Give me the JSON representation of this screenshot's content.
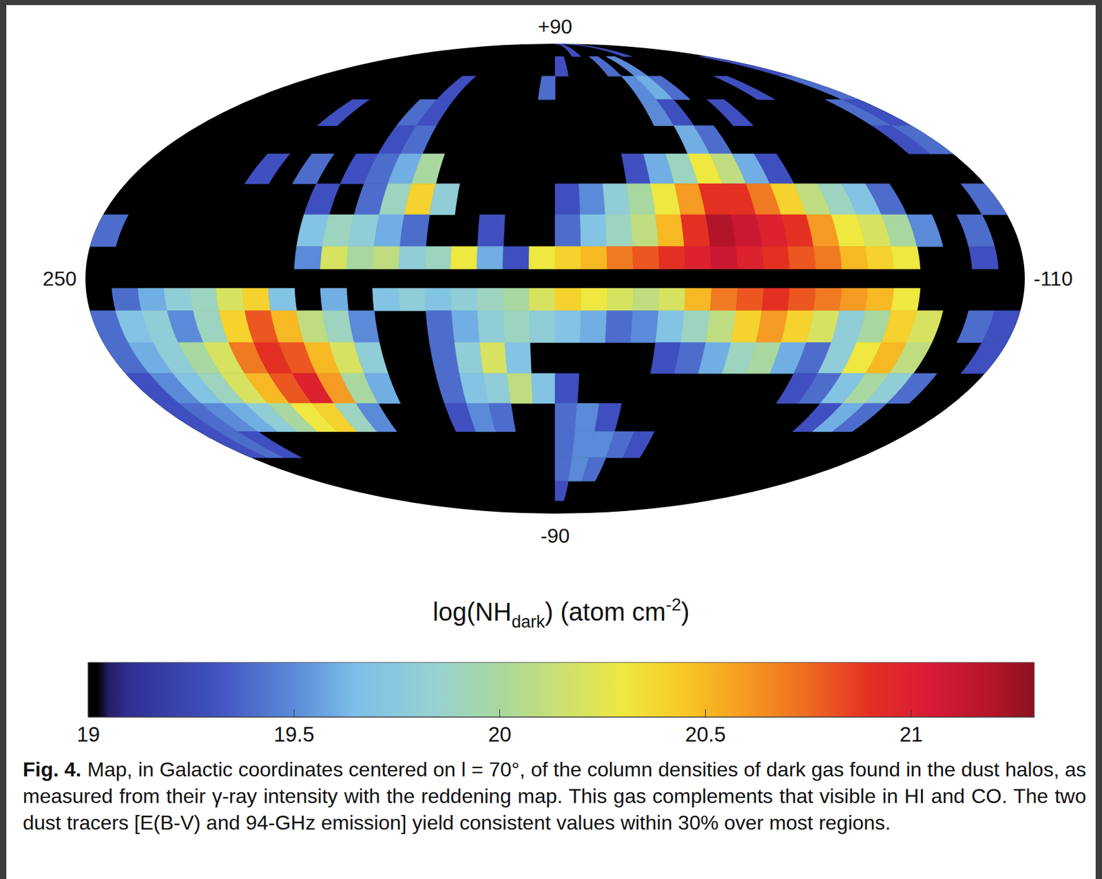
{
  "chart_data": {
    "type": "map",
    "xlim": [
      250,
      -110
    ],
    "ylim": [
      90,
      -90
    ],
    "xticks": [
      250,
      -110
    ],
    "yticks": [
      {
        "value": 90,
        "label": "+90"
      },
      -90
    ],
    "lon_edges": [
      250,
      240,
      230,
      220,
      210,
      200,
      190,
      180,
      170,
      160,
      150,
      140,
      130,
      120,
      110,
      100,
      90,
      80,
      70,
      60,
      50,
      40,
      30,
      20,
      10,
      0,
      -10,
      -20,
      -30,
      -40,
      -50,
      -60,
      -70,
      -80,
      -90,
      -100,
      -110
    ],
    "lat_edges": [
      90,
      80,
      70,
      60,
      50,
      40,
      30,
      20,
      10,
      3,
      -3,
      -10,
      -20,
      -30,
      -40,
      -50,
      -60,
      -70,
      -80,
      -90
    ],
    "cells": [
      [
        null,
        null,
        null,
        null,
        null,
        null,
        null,
        null,
        null,
        null,
        null,
        null,
        null,
        null,
        null,
        null,
        null,
        null,
        null,
        null,
        19.3,
        null,
        null,
        null,
        null,
        null,
        19.3,
        null,
        null,
        null,
        null,
        null,
        null,
        null,
        null,
        null
      ],
      [
        null,
        null,
        null,
        null,
        null,
        null,
        null,
        null,
        null,
        null,
        null,
        null,
        null,
        null,
        null,
        null,
        null,
        null,
        19.3,
        null,
        null,
        null,
        19.4,
        null,
        19.5,
        null,
        null,
        null,
        null,
        null,
        null,
        null,
        null,
        null,
        null,
        19.3
      ],
      [
        null,
        null,
        null,
        null,
        null,
        null,
        null,
        null,
        null,
        null,
        null,
        19.3,
        null,
        null,
        null,
        null,
        null,
        19.4,
        null,
        null,
        null,
        null,
        null,
        19.5,
        19.6,
        19.4,
        null,
        null,
        null,
        null,
        19.3,
        null,
        null,
        null,
        null,
        19.4
      ],
      [
        null,
        null,
        null,
        null,
        null,
        null,
        19.3,
        null,
        null,
        null,
        19.4,
        19.3,
        null,
        null,
        null,
        null,
        null,
        null,
        null,
        null,
        null,
        null,
        null,
        19.5,
        19.3,
        null,
        null,
        19.3,
        null,
        null,
        null,
        null,
        null,
        null,
        19.4,
        19.3
      ],
      [
        null,
        null,
        null,
        null,
        null,
        null,
        null,
        null,
        null,
        null,
        19.3,
        19.4,
        null,
        null,
        null,
        null,
        null,
        null,
        null,
        null,
        null,
        null,
        null,
        null,
        19.6,
        19.4,
        null,
        null,
        null,
        null,
        null,
        null,
        null,
        null,
        19.3,
        19.4
      ],
      [
        null,
        null,
        null,
        null,
        null,
        19.3,
        null,
        19.4,
        null,
        19.3,
        19.4,
        19.6,
        20.0,
        null,
        null,
        null,
        null,
        null,
        null,
        null,
        null,
        19.3,
        19.6,
        19.9,
        20.3,
        20.1,
        19.6,
        19.3,
        null,
        null,
        null,
        null,
        null,
        null,
        null,
        null
      ],
      [
        null,
        null,
        null,
        null,
        null,
        null,
        null,
        null,
        19.3,
        null,
        19.4,
        19.9,
        20.4,
        19.8,
        null,
        null,
        null,
        null,
        19.3,
        19.5,
        19.8,
        20.0,
        20.3,
        20.6,
        20.9,
        20.9,
        20.7,
        20.4,
        20.1,
        19.9,
        19.7,
        19.4,
        null,
        null,
        null,
        19.4
      ],
      [
        19.4,
        null,
        null,
        null,
        null,
        null,
        null,
        null,
        19.7,
        19.9,
        19.8,
        19.6,
        19.4,
        null,
        null,
        19.3,
        null,
        null,
        19.4,
        19.7,
        19.9,
        20.1,
        20.5,
        20.9,
        21.2,
        21.1,
        21.0,
        20.9,
        20.6,
        20.3,
        20.2,
        20.0,
        19.5,
        null,
        19.4,
        null
      ],
      [
        null,
        null,
        null,
        null,
        null,
        null,
        null,
        null,
        19.5,
        20.2,
        20.0,
        20.1,
        19.8,
        19.9,
        20.3,
        19.6,
        19.3,
        20.3,
        20.4,
        20.5,
        20.7,
        20.8,
        20.9,
        21.0,
        21.1,
        21.0,
        20.9,
        20.8,
        20.7,
        20.5,
        20.4,
        20.3,
        null,
        null,
        19.3,
        null
      ],
      [
        null,
        null,
        null,
        null,
        null,
        null,
        null,
        null,
        null,
        null,
        null,
        null,
        null,
        null,
        null,
        null,
        null,
        null,
        null,
        null,
        null,
        null,
        null,
        null,
        null,
        null,
        null,
        null,
        null,
        null,
        null,
        null,
        null,
        null,
        null,
        null
      ],
      [
        null,
        19.4,
        19.6,
        19.8,
        19.9,
        20.2,
        20.4,
        19.7,
        null,
        19.6,
        null,
        19.7,
        19.8,
        19.7,
        19.8,
        19.9,
        20.0,
        20.2,
        20.4,
        20.3,
        20.2,
        20.1,
        20.2,
        20.5,
        20.7,
        20.8,
        20.9,
        20.8,
        20.7,
        20.6,
        20.5,
        20.3,
        null,
        null,
        null,
        null
      ],
      [
        19.4,
        19.7,
        19.8,
        19.5,
        19.9,
        20.4,
        20.8,
        20.5,
        20.1,
        19.9,
        19.5,
        null,
        null,
        19.4,
        19.6,
        19.8,
        19.9,
        19.8,
        19.7,
        19.6,
        19.4,
        19.5,
        19.7,
        19.9,
        20.1,
        20.4,
        20.6,
        20.4,
        20.2,
        19.8,
        20.0,
        20.4,
        20.2,
        null,
        19.4,
        19.3
      ],
      [
        19.4,
        19.6,
        19.8,
        20.0,
        20.2,
        20.7,
        20.9,
        20.8,
        20.5,
        20.2,
        19.8,
        null,
        null,
        19.4,
        19.8,
        20.2,
        19.7,
        null,
        null,
        null,
        null,
        null,
        19.3,
        19.4,
        19.6,
        19.9,
        20.0,
        19.6,
        19.4,
        19.8,
        20.3,
        20.5,
        20.1,
        null,
        null,
        19.3
      ],
      [
        19.3,
        19.5,
        19.7,
        19.9,
        20.2,
        20.5,
        20.8,
        21.0,
        20.6,
        20.0,
        19.6,
        null,
        null,
        19.4,
        19.7,
        19.8,
        20.1,
        19.7,
        19.3,
        null,
        null,
        null,
        null,
        null,
        null,
        null,
        null,
        null,
        19.3,
        19.4,
        19.7,
        20.0,
        19.8,
        19.4,
        null,
        null
      ],
      [
        19.3,
        19.4,
        19.5,
        19.6,
        19.8,
        20.0,
        20.3,
        20.4,
        19.9,
        19.5,
        null,
        null,
        null,
        19.3,
        19.5,
        19.4,
        null,
        null,
        19.4,
        19.5,
        19.3,
        null,
        null,
        null,
        null,
        null,
        null,
        null,
        null,
        null,
        19.3,
        19.6,
        19.4,
        null,
        null,
        null
      ],
      [
        19.3,
        19.4,
        19.3,
        null,
        null,
        null,
        null,
        null,
        null,
        null,
        null,
        null,
        null,
        null,
        null,
        null,
        null,
        null,
        19.4,
        19.5,
        19.5,
        19.4,
        19.3,
        null,
        null,
        null,
        null,
        null,
        null,
        null,
        null,
        null,
        null,
        null,
        null,
        null
      ],
      [
        null,
        null,
        null,
        null,
        null,
        null,
        null,
        null,
        null,
        null,
        null,
        null,
        null,
        null,
        null,
        null,
        null,
        null,
        19.4,
        19.5,
        19.4,
        null,
        null,
        null,
        null,
        null,
        null,
        null,
        null,
        null,
        null,
        null,
        null,
        null,
        null,
        null
      ],
      [
        null,
        null,
        null,
        null,
        null,
        null,
        null,
        null,
        null,
        null,
        null,
        null,
        null,
        null,
        null,
        null,
        null,
        null,
        19.3,
        null,
        null,
        null,
        null,
        null,
        null,
        null,
        null,
        null,
        null,
        null,
        null,
        null,
        null,
        null,
        null,
        null
      ],
      [
        null,
        null,
        null,
        null,
        null,
        null,
        null,
        null,
        null,
        null,
        null,
        null,
        null,
        null,
        null,
        null,
        null,
        null,
        null,
        null,
        null,
        null,
        null,
        null,
        null,
        null,
        null,
        null,
        null,
        null,
        null,
        null,
        null,
        null,
        null,
        null
      ]
    ],
    "colorbar": {
      "title": [
        "log(NH",
        "dark",
        ") (atom cm",
        "-2",
        ")"
      ],
      "lim": [
        19,
        21.3
      ],
      "ticks": [
        19,
        19.5,
        20,
        20.5,
        21
      ]
    },
    "caption": {
      "label": "Fig. 4.",
      "text": "Map, in Galactic coordinates centered on l = 70°, of the column densities of dark gas found in the dust halos, as measured from their γ-ray intensity with the reddening map. This gas complements that visible in HI and CO. The two dust tracers [E(B-V) and 94-GHz emission] yield consistent values within 30% over most regions."
    }
  }
}
